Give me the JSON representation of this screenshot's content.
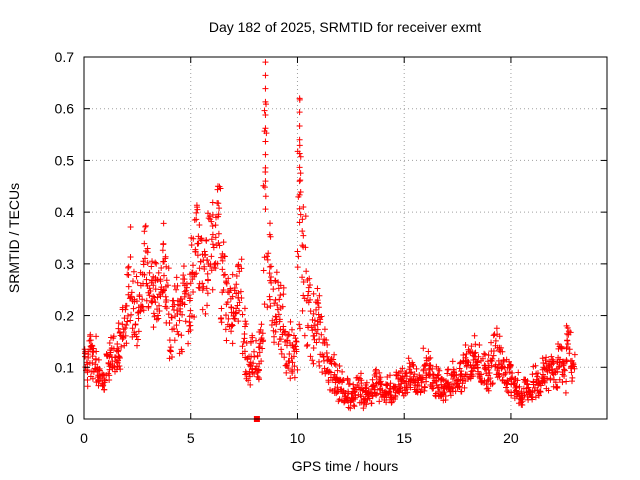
{
  "chart_data": {
    "type": "scatter",
    "title": "Day 182 of 2025, SRMTID for receiver exmt",
    "xlabel": "GPS time / hours",
    "ylabel": "SRMTID / TECUs",
    "xlim": [
      0,
      24.5
    ],
    "ylim": [
      0,
      0.7
    ],
    "xticks": [
      0,
      5,
      10,
      15,
      20
    ],
    "xtick_labels": [
      "0",
      "5",
      "10",
      "15",
      "20"
    ],
    "yticks": [
      0,
      0.1,
      0.2,
      0.3,
      0.4,
      0.5,
      0.6,
      0.7
    ],
    "ytick_labels": [
      "0",
      "0.1",
      "0.2",
      "0.3",
      "0.4",
      "0.5",
      "0.6",
      "0.7"
    ],
    "grid": true,
    "marker": "plus",
    "color": "#ff0000",
    "series": [
      {
        "name": "SRMTID",
        "x": [
          0.0,
          0.2,
          0.4,
          0.6,
          0.8,
          1.0,
          1.2,
          1.4,
          1.6,
          1.8,
          2.0,
          2.2,
          2.4,
          2.6,
          2.8,
          3.0,
          3.2,
          3.4,
          3.6,
          3.8,
          4.0,
          4.2,
          4.4,
          4.6,
          4.8,
          5.0,
          5.2,
          5.4,
          5.6,
          5.8,
          6.0,
          6.2,
          6.4,
          6.6,
          6.8,
          7.0,
          7.2,
          7.4,
          7.6,
          7.8,
          8.0,
          8.2,
          8.4,
          8.6,
          8.8,
          9.0,
          9.2,
          9.4,
          9.6,
          9.8,
          10.0,
          10.2,
          10.4,
          10.6,
          10.8,
          11.0,
          11.2,
          11.4,
          11.6,
          11.8,
          12.0,
          12.2,
          12.4,
          12.6,
          12.8,
          13.0,
          13.2,
          13.4,
          13.6,
          13.8,
          14.0,
          14.2,
          14.4,
          14.6,
          14.8,
          15.0,
          15.2,
          15.4,
          15.6,
          15.8,
          16.0,
          16.2,
          16.4,
          16.6,
          16.8,
          17.0,
          17.2,
          17.4,
          17.6,
          17.8,
          18.0,
          18.2,
          18.4,
          18.6,
          18.8,
          19.0,
          19.2,
          19.4,
          19.6,
          19.8,
          20.0,
          20.2,
          20.4,
          20.6,
          20.8,
          21.0,
          21.2,
          21.4,
          21.6,
          21.8,
          22.0,
          22.2,
          22.4,
          22.6,
          22.8
        ],
        "y": [
          0.1,
          0.14,
          0.12,
          0.08,
          0.07,
          0.1,
          0.13,
          0.11,
          0.15,
          0.18,
          0.25,
          0.22,
          0.2,
          0.24,
          0.27,
          0.25,
          0.23,
          0.26,
          0.3,
          0.24,
          0.16,
          0.21,
          0.19,
          0.24,
          0.22,
          0.32,
          0.36,
          0.3,
          0.29,
          0.35,
          0.34,
          0.4,
          0.28,
          0.22,
          0.2,
          0.23,
          0.26,
          0.16,
          0.1,
          0.12,
          0.11,
          0.14,
          0.46,
          0.27,
          0.2,
          0.23,
          0.18,
          0.14,
          0.12,
          0.13,
          0.38,
          0.28,
          0.22,
          0.19,
          0.18,
          0.16,
          0.12,
          0.09,
          0.08,
          0.07,
          0.06,
          0.05,
          0.04,
          0.05,
          0.06,
          0.05,
          0.04,
          0.06,
          0.07,
          0.06,
          0.05,
          0.06,
          0.05,
          0.07,
          0.06,
          0.07,
          0.08,
          0.07,
          0.06,
          0.08,
          0.09,
          0.08,
          0.07,
          0.06,
          0.05,
          0.07,
          0.08,
          0.06,
          0.09,
          0.1,
          0.11,
          0.12,
          0.1,
          0.09,
          0.08,
          0.1,
          0.12,
          0.11,
          0.09,
          0.08,
          0.07,
          0.06,
          0.05,
          0.06,
          0.05,
          0.07,
          0.06,
          0.08,
          0.09,
          0.1,
          0.08,
          0.12,
          0.09,
          0.16,
          0.1
        ],
        "y_min_spread": [
          0.05,
          0.08,
          0.07,
          0.05,
          0.05,
          0.06,
          0.08,
          0.07,
          0.09,
          0.12,
          0.15,
          0.14,
          0.13,
          0.16,
          0.19,
          0.18,
          0.16,
          0.19,
          0.21,
          0.14,
          0.1,
          0.14,
          0.12,
          0.16,
          0.14,
          0.18,
          0.24,
          0.21,
          0.18,
          0.24,
          0.24,
          0.28,
          0.18,
          0.14,
          0.13,
          0.15,
          0.17,
          0.08,
          0.06,
          0.07,
          0.06,
          0.08,
          0.1,
          0.15,
          0.12,
          0.14,
          0.1,
          0.07,
          0.07,
          0.08,
          0.1,
          0.14,
          0.11,
          0.1,
          0.1,
          0.09,
          0.07,
          0.05,
          0.04,
          0.03,
          0.03,
          0.02,
          0.02,
          0.02,
          0.03,
          0.02,
          0.02,
          0.03,
          0.03,
          0.03,
          0.02,
          0.03,
          0.03,
          0.04,
          0.03,
          0.04,
          0.05,
          0.04,
          0.03,
          0.05,
          0.05,
          0.04,
          0.04,
          0.04,
          0.03,
          0.04,
          0.05,
          0.04,
          0.05,
          0.06,
          0.06,
          0.07,
          0.06,
          0.05,
          0.05,
          0.06,
          0.07,
          0.06,
          0.05,
          0.04,
          0.04,
          0.03,
          0.02,
          0.03,
          0.03,
          0.04,
          0.04,
          0.05,
          0.05,
          0.06,
          0.05,
          0.07,
          0.05,
          0.08,
          0.06
        ],
        "y_max_spread": [
          0.17,
          0.19,
          0.16,
          0.12,
          0.11,
          0.15,
          0.18,
          0.16,
          0.21,
          0.26,
          0.38,
          0.33,
          0.29,
          0.33,
          0.38,
          0.34,
          0.32,
          0.36,
          0.4,
          0.33,
          0.24,
          0.29,
          0.27,
          0.34,
          0.31,
          0.41,
          0.42,
          0.39,
          0.4,
          0.43,
          0.45,
          0.45,
          0.37,
          0.31,
          0.28,
          0.31,
          0.34,
          0.23,
          0.15,
          0.18,
          0.17,
          0.2,
          0.69,
          0.4,
          0.3,
          0.32,
          0.26,
          0.22,
          0.19,
          0.2,
          0.62,
          0.41,
          0.33,
          0.28,
          0.26,
          0.24,
          0.18,
          0.14,
          0.13,
          0.11,
          0.1,
          0.08,
          0.07,
          0.08,
          0.09,
          0.08,
          0.07,
          0.09,
          0.11,
          0.1,
          0.08,
          0.09,
          0.08,
          0.11,
          0.1,
          0.11,
          0.12,
          0.11,
          0.1,
          0.14,
          0.15,
          0.12,
          0.11,
          0.1,
          0.08,
          0.11,
          0.12,
          0.1,
          0.13,
          0.15,
          0.16,
          0.17,
          0.15,
          0.14,
          0.13,
          0.17,
          0.18,
          0.16,
          0.14,
          0.12,
          0.11,
          0.09,
          0.08,
          0.09,
          0.08,
          0.11,
          0.1,
          0.12,
          0.13,
          0.15,
          0.12,
          0.16,
          0.13,
          0.18,
          0.15
        ]
      }
    ],
    "zero_marker": {
      "x": 8.1,
      "y": 0.0
    }
  }
}
